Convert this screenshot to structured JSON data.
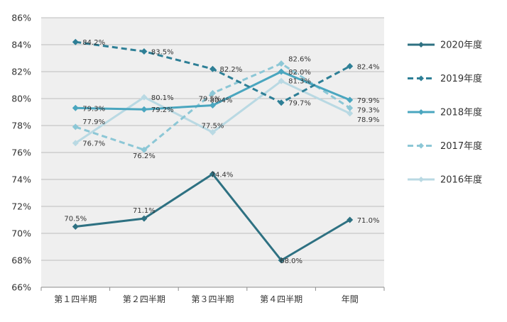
{
  "chart_data": {
    "type": "line",
    "categories": [
      "第１四半期",
      "第２四半期",
      "第３四半期",
      "第４四半期",
      "年間"
    ],
    "ylim": [
      66,
      86
    ],
    "yticks": [
      "66%",
      "68%",
      "70%",
      "72%",
      "74%",
      "76%",
      "78%",
      "80%",
      "82%",
      "84%",
      "86%"
    ],
    "grid": true,
    "legend_position": "right",
    "plot_background": "#efefef",
    "series": [
      {
        "name": "2020年度",
        "values": [
          70.5,
          71.1,
          74.4,
          68.0,
          71.0
        ],
        "labels": [
          "70.5%",
          "71.1%",
          "74.4%",
          "68.0%",
          "71.0%"
        ],
        "color": "#2e7182",
        "dashed": false
      },
      {
        "name": "2019年度",
        "values": [
          84.2,
          83.5,
          82.2,
          79.7,
          82.4
        ],
        "labels": [
          "84.2%",
          "83.5%",
          "82.2%",
          "79.7%",
          "82.4%"
        ],
        "color": "#2e7f96",
        "dashed": true
      },
      {
        "name": "2018年度",
        "values": [
          79.3,
          79.2,
          79.5,
          82.0,
          79.9
        ],
        "labels": [
          "79.3%",
          "79.2%",
          "79.5%",
          "82.0%",
          "79.9%"
        ],
        "color": "#4aa6bf",
        "dashed": false
      },
      {
        "name": "2017年度",
        "values": [
          77.9,
          76.2,
          80.4,
          82.6,
          79.3
        ],
        "labels": [
          "77.9%",
          "76.2%",
          "80.4%",
          "82.6%",
          "79.3%"
        ],
        "color": "#8cc7d6",
        "dashed": true
      },
      {
        "name": "2016年度",
        "values": [
          76.7,
          80.1,
          77.5,
          81.3,
          78.9
        ],
        "labels": [
          "76.7%",
          "80.1%",
          "77.5%",
          "81.3%",
          "78.9%"
        ],
        "color": "#b9d9e3",
        "dashed": false
      }
    ]
  }
}
